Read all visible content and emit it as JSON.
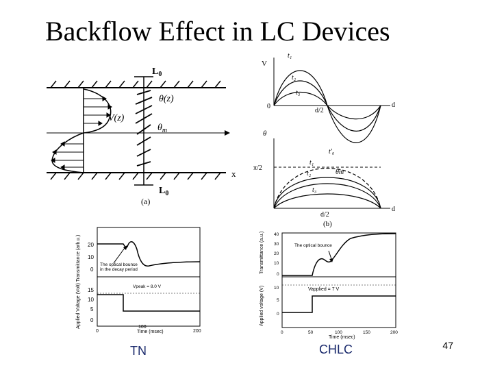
{
  "slide": {
    "title": "Backflow Effect in LC Devices",
    "page_number": "47",
    "caption_left": "TN",
    "caption_right": "CHLC"
  },
  "fig_a": {
    "label_top": "L",
    "sub_top": "0",
    "label_bottom": "L",
    "sub_bottom": "0",
    "theta_z": "θ(z)",
    "v_z": "V(z)",
    "theta_m": "θ",
    "theta_m_sub": "m",
    "x_axis": "x",
    "panel": "(a)"
  },
  "fig_b": {
    "v_label": "V",
    "theta_label": "θ",
    "origin": "0",
    "d_half": "d/2",
    "d": "d",
    "t1": "t₁",
    "t2": "t₂",
    "t3": "t₃",
    "t0": "t'₀",
    "pi_half": "π/2",
    "theta_m": "θm",
    "d_half_bottom": "d/2",
    "d_bottom": "d",
    "panel": "(b)"
  },
  "tn_chart": {
    "ylabel_top": "Transmittance (arb.u.)",
    "ylabel_bottom": "Applied Voltage (Volt)",
    "ylabel_combined": "Applied Voltage (Volt) Transmittance (arb.u.)",
    "annotation": "The optical bounce",
    "annotation2": "in the decay period",
    "vpeak": "Vpeak = 8.0 V",
    "xlabel": "Time (msec)",
    "y_ticks_top": [
      "20",
      "10",
      "0"
    ],
    "y_ticks_bottom": [
      "15",
      "10",
      "5",
      "0"
    ],
    "x_ticks": [
      "0",
      "100",
      "200"
    ]
  },
  "chlc_chart": {
    "ylabel_top": "Transmittance (a.u.)",
    "ylabel_bottom": "Applied voltage (V)",
    "annotation": "The optical bounce",
    "vapplied": "Vapplied = 7 V",
    "xlabel": "Time (msec)",
    "y_ticks_top": [
      "40",
      "30",
      "20",
      "10",
      "0"
    ],
    "y_ticks_bottom": [
      "10",
      "5",
      "0"
    ],
    "x_ticks": [
      "0",
      "50",
      "100",
      "150",
      "200"
    ]
  },
  "colors": {
    "caption": "#1a2a6c",
    "ink": "#000000"
  }
}
